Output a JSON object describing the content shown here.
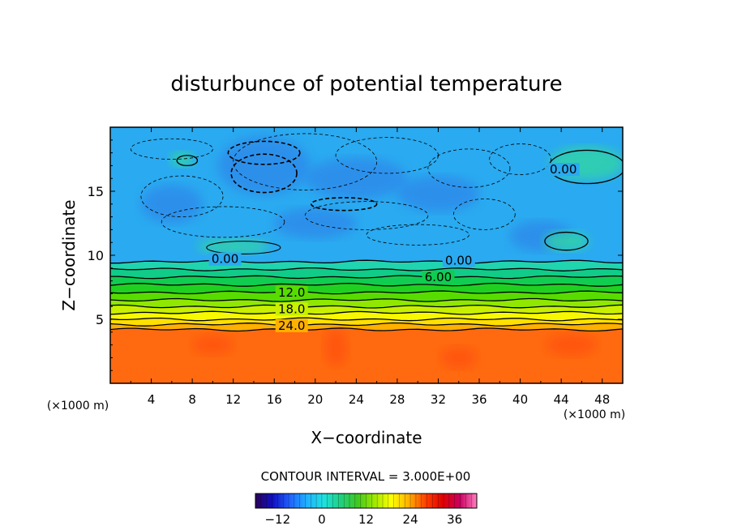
{
  "chart_data": {
    "type": "heatmap",
    "title": "disturbunce of potential temperature",
    "xlabel": "X−coordinate",
    "ylabel": "Z−coordinate",
    "x_unit_left": "(×1000 m)",
    "x_unit_right": "(×1000 m)",
    "xlim": [
      0,
      50
    ],
    "ylim": [
      0,
      20
    ],
    "x_ticks": [
      4,
      8,
      12,
      16,
      20,
      24,
      28,
      32,
      36,
      40,
      44,
      48
    ],
    "y_ticks": [
      5,
      10,
      15
    ],
    "contour_interval_text": "CONTOUR INTERVAL = 3.000E+00",
    "contour_labels": [
      {
        "text": "0.00",
        "x": 11.2,
        "z": 9.7
      },
      {
        "text": "0.00",
        "x": 34.0,
        "z": 9.6
      },
      {
        "text": "6.00",
        "x": 32.0,
        "z": 8.3
      },
      {
        "text": "12.0",
        "x": 17.7,
        "z": 7.1
      },
      {
        "text": "18.0",
        "x": 17.7,
        "z": 5.8
      },
      {
        "text": "24.0",
        "x": 17.7,
        "z": 4.5
      },
      {
        "text": "0.00",
        "x": 44.2,
        "z": 16.7
      }
    ],
    "bands": [
      {
        "z_top": 4.2,
        "value": 33,
        "color": "#ff6a10"
      },
      {
        "z_top": 4.6,
        "value": 27,
        "color": "#ffb000"
      },
      {
        "z_top": 5.0,
        "value": 24,
        "color": "#ffe000"
      },
      {
        "z_top": 5.5,
        "value": 21,
        "color": "#f8f800"
      },
      {
        "z_top": 6.0,
        "value": 18,
        "color": "#c8f000"
      },
      {
        "z_top": 6.5,
        "value": 15,
        "color": "#90e800"
      },
      {
        "z_top": 7.1,
        "value": 12,
        "color": "#58dc00"
      },
      {
        "z_top": 7.7,
        "value": 9,
        "color": "#20d020"
      },
      {
        "z_top": 8.3,
        "value": 6,
        "color": "#10cc50"
      },
      {
        "z_top": 8.9,
        "value": 3,
        "color": "#10cc88"
      },
      {
        "z_top": 9.5,
        "value": 0,
        "color": "#20d4b0"
      },
      {
        "z_top": 20.0,
        "value": -3,
        "color": "#2aaaf0"
      }
    ],
    "cold_region_color": "#2f80e8",
    "warm_pocket_color": "#ff4a10",
    "colorbar": {
      "min": -18,
      "max": 42,
      "ticks": [
        -12,
        0,
        12,
        24,
        36
      ],
      "stops": [
        "#2a005a",
        "#1010c0",
        "#2060ff",
        "#20b0ff",
        "#20e0e0",
        "#20d080",
        "#40c820",
        "#a0e800",
        "#ffff00",
        "#ffb000",
        "#ff4000",
        "#e00000",
        "#c80060",
        "#ff80c0"
      ]
    }
  }
}
